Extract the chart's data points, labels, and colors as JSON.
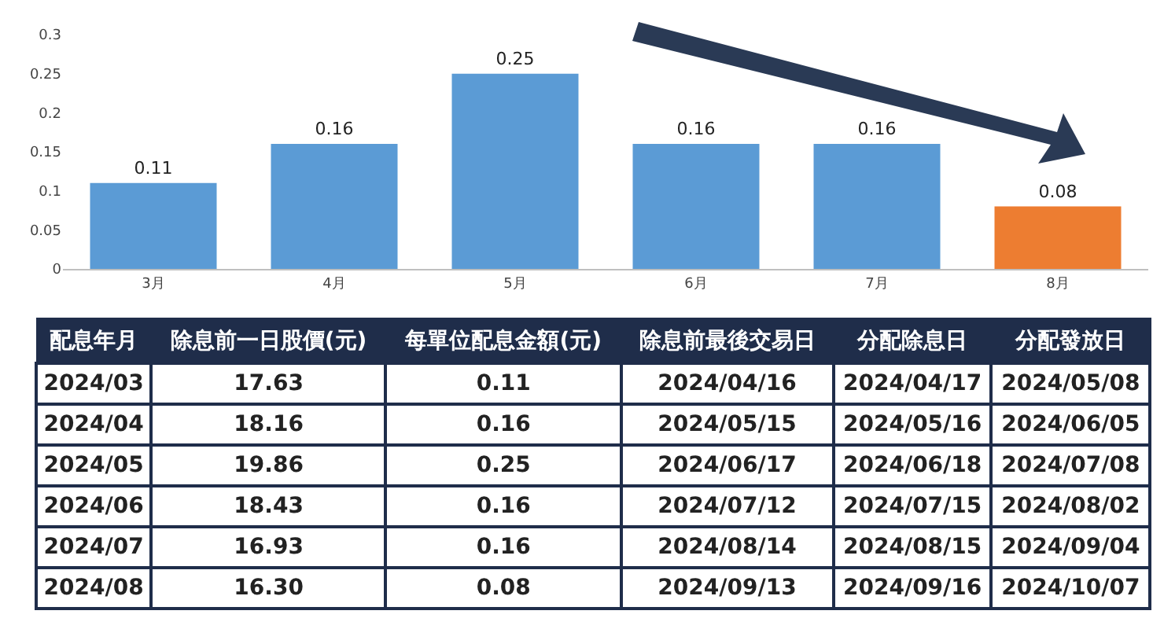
{
  "chart_data": [
    {
      "type": "bar",
      "categories": [
        "3月",
        "4月",
        "5月",
        "6月",
        "7月",
        "8月"
      ],
      "values": [
        0.11,
        0.16,
        0.25,
        0.16,
        0.16,
        0.08
      ],
      "colors": [
        "#5b9bd5",
        "#5b9bd5",
        "#5b9bd5",
        "#5b9bd5",
        "#5b9bd5",
        "#ed7d31"
      ],
      "ylim": [
        0,
        0.3
      ],
      "yticks": [
        0,
        0.05,
        0.1,
        0.15,
        0.2,
        0.25,
        0.3
      ],
      "grid": false,
      "legend": false,
      "data_labels": true
    },
    {
      "type": "other",
      "categories": [
        "配息年月",
        "除息前一日股價(元)",
        "每單位配息金額(元)",
        "除息前最後交易日",
        "分配除息日",
        "分配發放日"
      ],
      "color": "#1f2d4a",
      "annotations": [
        "2024/03",
        "17.63",
        "0.11",
        "2024/04/16",
        "2024/04/17",
        "2024/05/08",
        "2024/04",
        "18.16",
        "0.16",
        "2024/05/15",
        "2024/05/16",
        "2024/06/05",
        "2024/05",
        "19.86",
        "0.25",
        "2024/06/17",
        "2024/06/18",
        "2024/07/08",
        "2024/06",
        "18.43",
        "0.16",
        "2024/07/12",
        "2024/07/15",
        "2024/08/02",
        "2024/07",
        "16.93",
        "0.16",
        "2024/08/14",
        "2024/08/15",
        "2024/09/04",
        "2024/08",
        "16.30",
        "0.08",
        "2024/09/13",
        "2024/09/16",
        "2024/10/07"
      ]
    }
  ]
}
